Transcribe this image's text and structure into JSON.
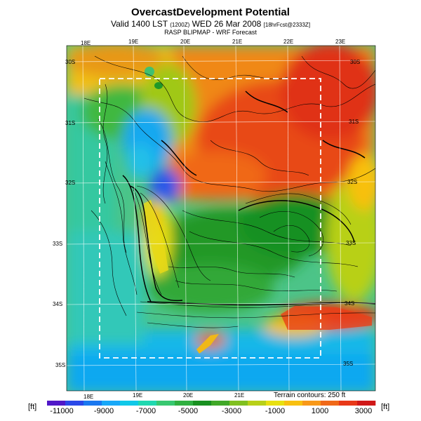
{
  "header": {
    "title": "OvercastDevelopment Potential",
    "subtitle_main": "Valid 1400 LST",
    "subtitle_small": "(1200Z)",
    "subtitle_date": "WED 26 Mar 2008",
    "subtitle_run": "[18hrFcst@2333Z]",
    "source": "RASP BLIPMAP - WRF Forecast"
  },
  "map": {
    "top_lon_labels": [
      "18E",
      "19E",
      "20E",
      "21E",
      "22E",
      "23E"
    ],
    "bottom_lon_labels": [
      "18E",
      "19E",
      "20E",
      "21E"
    ],
    "left_lat_labels": [
      "30S",
      "31S",
      "32S",
      "33S",
      "34S",
      "35S"
    ],
    "right_lat_labels": [
      "30S",
      "31S",
      "32S",
      "33S",
      "34S",
      "35S"
    ],
    "terrain_note": "Terrain contours: 250 ft"
  },
  "colorbar": {
    "unit": "[ft]",
    "labels": [
      "-11000",
      "-9000",
      "-7000",
      "-5000",
      "-3000",
      "-1000",
      "1000",
      "3000"
    ],
    "colors": [
      "#5018c8",
      "#2a48e8",
      "#1a78f0",
      "#18a8f8",
      "#10c8e8",
      "#20d8b0",
      "#38c870",
      "#30b040",
      "#189020",
      "#40a828",
      "#80c020",
      "#b8d018",
      "#e8e010",
      "#f8c010",
      "#f89818",
      "#f06818",
      "#e83818",
      "#d01818"
    ]
  }
}
